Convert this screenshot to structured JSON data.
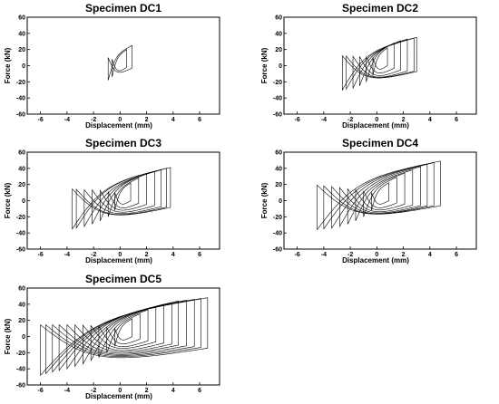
{
  "chart_data": [
    {
      "type": "line",
      "title": "Specimen DC1",
      "xlabel": "Displacement (mm)",
      "ylabel": "Force (kN)",
      "xlim": [
        -7,
        7.5
      ],
      "ylim": [
        -60,
        60
      ],
      "xticks": [
        "-6",
        "-4",
        "-2",
        "0",
        "2",
        "4",
        "6"
      ],
      "yticks": [
        "60",
        "40",
        "20",
        "0",
        "-20",
        "-40",
        "-60"
      ],
      "grid": false,
      "series": [
        {
          "values": [
            [
              -0.9,
              0.5,
              -18,
              25
            ]
          ]
        }
      ],
      "hysteresis_loops": [
        {
          "dmin": -0.6,
          "dmax": 0.5,
          "fmin": -14,
          "fmax": 20
        },
        {
          "dmin": -0.9,
          "dmax": 0.9,
          "fmin": -18,
          "fmax": 25
        }
      ]
    },
    {
      "type": "line",
      "title": "Specimen DC2",
      "xlabel": "Displacement (mm)",
      "ylabel": "Force (kN)",
      "xlim": [
        -7,
        7.5
      ],
      "ylim": [
        -60,
        60
      ],
      "xticks": [
        "-6",
        "-4",
        "-2",
        "0",
        "2",
        "4",
        "6"
      ],
      "yticks": [
        "60",
        "40",
        "20",
        "0",
        "-20",
        "-40",
        "-60"
      ],
      "grid": false,
      "hysteresis_loops": [
        {
          "dmin": -0.3,
          "dmax": 0.8,
          "fmin": -12,
          "fmax": 22
        },
        {
          "dmin": -0.8,
          "dmax": 1.3,
          "fmin": -20,
          "fmax": 28
        },
        {
          "dmin": -1.3,
          "dmax": 1.8,
          "fmin": -25,
          "fmax": 31
        },
        {
          "dmin": -1.8,
          "dmax": 2.3,
          "fmin": -28,
          "fmax": 33
        },
        {
          "dmin": -2.3,
          "dmax": 2.8,
          "fmin": -29,
          "fmax": 34
        },
        {
          "dmin": -2.6,
          "dmax": 3.0,
          "fmin": -30,
          "fmax": 35
        }
      ]
    },
    {
      "type": "line",
      "title": "Specimen DC3",
      "xlabel": "Displacement (mm)",
      "ylabel": "Force (kN)",
      "xlim": [
        -7,
        7.5
      ],
      "ylim": [
        -60,
        60
      ],
      "xticks": [
        "-6",
        "-4",
        "-2",
        "0",
        "2",
        "4",
        "6"
      ],
      "yticks": [
        "60",
        "40",
        "20",
        "0",
        "-20",
        "-40",
        "-60"
      ],
      "grid": false,
      "hysteresis_loops": [
        {
          "dmin": -0.4,
          "dmax": 0.8,
          "fmin": -12,
          "fmax": 22
        },
        {
          "dmin": -0.9,
          "dmax": 1.4,
          "fmin": -20,
          "fmax": 28
        },
        {
          "dmin": -1.5,
          "dmax": 2.0,
          "fmin": -25,
          "fmax": 33
        },
        {
          "dmin": -2.1,
          "dmax": 2.6,
          "fmin": -29,
          "fmax": 36
        },
        {
          "dmin": -2.7,
          "dmax": 3.1,
          "fmin": -32,
          "fmax": 38
        },
        {
          "dmin": -3.3,
          "dmax": 3.5,
          "fmin": -34,
          "fmax": 40
        },
        {
          "dmin": -3.6,
          "dmax": 3.8,
          "fmin": -35,
          "fmax": 41
        }
      ]
    },
    {
      "type": "line",
      "title": "Specimen DC4",
      "xlabel": "Displacement (mm)",
      "ylabel": "Force (kN)",
      "xlim": [
        -7,
        7.5
      ],
      "ylim": [
        -60,
        60
      ],
      "xticks": [
        "-6",
        "-4",
        "-2",
        "0",
        "2",
        "4",
        "6"
      ],
      "yticks": [
        "60",
        "40",
        "20",
        "0",
        "-20",
        "-40",
        "-60"
      ],
      "grid": false,
      "hysteresis_loops": [
        {
          "dmin": -0.4,
          "dmax": 0.9,
          "fmin": -12,
          "fmax": 22
        },
        {
          "dmin": -1.0,
          "dmax": 1.5,
          "fmin": -20,
          "fmax": 29
        },
        {
          "dmin": -1.6,
          "dmax": 2.1,
          "fmin": -25,
          "fmax": 34
        },
        {
          "dmin": -2.2,
          "dmax": 2.7,
          "fmin": -29,
          "fmax": 38
        },
        {
          "dmin": -2.8,
          "dmax": 3.3,
          "fmin": -32,
          "fmax": 42
        },
        {
          "dmin": -3.4,
          "dmax": 3.8,
          "fmin": -34,
          "fmax": 45
        },
        {
          "dmin": -4.0,
          "dmax": 4.3,
          "fmin": -35,
          "fmax": 47
        },
        {
          "dmin": -4.5,
          "dmax": 4.8,
          "fmin": -36,
          "fmax": 49
        }
      ]
    },
    {
      "type": "line",
      "title": "Specimen DC5",
      "xlabel": "Displacement (mm)",
      "ylabel": "Force (kN)",
      "xlim": [
        -7,
        7.5
      ],
      "ylim": [
        -60,
        60
      ],
      "xticks": [
        "-6",
        "-4",
        "-2",
        "0",
        "2",
        "4",
        "6"
      ],
      "yticks": [
        "60",
        "40",
        "20",
        "0",
        "-20",
        "-40",
        "-60"
      ],
      "grid": false,
      "hysteresis_loops": [
        {
          "dmin": -0.4,
          "dmax": 0.9,
          "fmin": -12,
          "fmax": 22
        },
        {
          "dmin": -1.0,
          "dmax": 1.5,
          "fmin": -20,
          "fmax": 28
        },
        {
          "dmin": -1.6,
          "dmax": 2.1,
          "fmin": -26,
          "fmax": 33
        },
        {
          "dmin": -2.2,
          "dmax": 2.7,
          "fmin": -30,
          "fmax": 37
        },
        {
          "dmin": -2.8,
          "dmax": 3.3,
          "fmin": -34,
          "fmax": 40
        },
        {
          "dmin": -3.4,
          "dmax": 3.9,
          "fmin": -37,
          "fmax": 42
        },
        {
          "dmin": -4.0,
          "dmax": 4.4,
          "fmin": -40,
          "fmax": 44
        },
        {
          "dmin": -4.6,
          "dmax": 5.0,
          "fmin": -42,
          "fmax": 45
        },
        {
          "dmin": -5.1,
          "dmax": 5.6,
          "fmin": -44,
          "fmax": 46
        },
        {
          "dmin": -5.6,
          "dmax": 6.1,
          "fmin": -46,
          "fmax": 47
        },
        {
          "dmin": -6.0,
          "dmax": 6.6,
          "fmin": -48,
          "fmax": 48
        }
      ]
    }
  ]
}
